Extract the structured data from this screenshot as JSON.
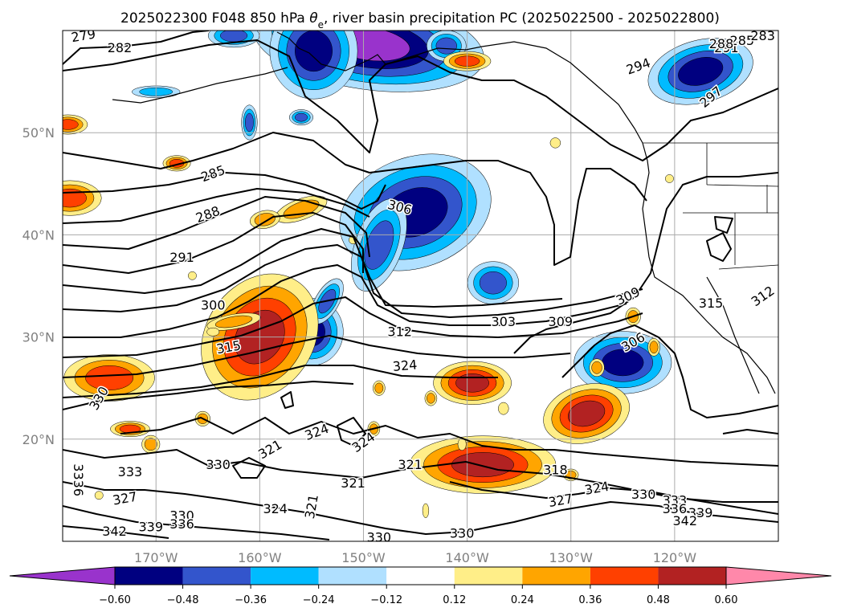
{
  "chart_data": {
    "type": "contour_map",
    "title": "2025022300 F048 850 hPa θe, river basin precipitation PC (2025022500 - 2025022800)",
    "title_parts": {
      "pre": "2025022300 F048 850 hPa ",
      "theta": "θ",
      "sub": "e",
      "post": ", river basin precipitation PC (2025022500 - 2025022800)"
    },
    "x_axis": {
      "ticks": [
        "170°W",
        "160°W",
        "150°W",
        "140°W",
        "130°W",
        "120°W"
      ],
      "values": [
        -170,
        -160,
        -150,
        -140,
        -130,
        -120
      ],
      "range": [
        -179,
        -110
      ]
    },
    "y_axis": {
      "ticks": [
        "20°N",
        "30°N",
        "40°N",
        "50°N"
      ],
      "values": [
        20,
        30,
        40,
        50
      ],
      "range": [
        10,
        60
      ]
    },
    "grid": true,
    "colorbar": {
      "orientation": "horizontal",
      "location": "bottom",
      "extend": "both",
      "boundaries": [
        -0.6,
        -0.48,
        -0.36,
        -0.24,
        -0.12,
        0.12,
        0.24,
        0.36,
        0.48,
        0.6
      ],
      "tick_labels": [
        "−0.60",
        "−0.48",
        "−0.36",
        "−0.24",
        "−0.12",
        "0.12",
        "0.24",
        "0.36",
        "0.48",
        "0.60"
      ],
      "colors": [
        "#9933cc",
        "#000080",
        "#3355cc",
        "#00bbff",
        "#b0e0ff",
        "#ffffff",
        "#ffee88",
        "#ffa500",
        "#ff4000",
        "#b22222",
        "#ff88aa"
      ]
    },
    "contour_labels": [
      {
        "text": "279",
        "lon": -177.0,
        "lat": 59.5,
        "rot": -10
      },
      {
        "text": "282",
        "lon": -173.5,
        "lat": 58.3,
        "rot": 0
      },
      {
        "text": "285",
        "lon": -164.5,
        "lat": 46.0,
        "rot": -20
      },
      {
        "text": "288",
        "lon": -165.0,
        "lat": 42.0,
        "rot": -20
      },
      {
        "text": "291",
        "lon": -167.5,
        "lat": 37.8,
        "rot": 0
      },
      {
        "text": "300",
        "lon": -164.5,
        "lat": 33.1,
        "rot": 0
      },
      {
        "text": "315",
        "lon": -163.0,
        "lat": 29.0,
        "rot": -10
      },
      {
        "text": "306",
        "lon": -146.5,
        "lat": 42.7,
        "rot": 15
      },
      {
        "text": "312",
        "lon": -146.5,
        "lat": 30.5,
        "rot": 0
      },
      {
        "text": "303",
        "lon": -136.5,
        "lat": 31.5,
        "rot": 0
      },
      {
        "text": "309",
        "lon": -131.0,
        "lat": 31.5,
        "rot": 0
      },
      {
        "text": "324",
        "lon": -146.0,
        "lat": 27.2,
        "rot": -5
      },
      {
        "text": "330",
        "lon": -175.5,
        "lat": 24.0,
        "rot": -60
      },
      {
        "text": "321",
        "lon": -159.0,
        "lat": 19.0,
        "rot": -30
      },
      {
        "text": "324",
        "lon": -154.5,
        "lat": 20.7,
        "rot": -20
      },
      {
        "text": "324",
        "lon": -150.0,
        "lat": 19.7,
        "rot": -35
      },
      {
        "text": "333",
        "lon": -172.5,
        "lat": 16.8,
        "rot": 0
      },
      {
        "text": "330",
        "lon": -164.0,
        "lat": 17.5,
        "rot": 0
      },
      {
        "text": "321",
        "lon": -145.5,
        "lat": 17.5,
        "rot": 0
      },
      {
        "text": "321",
        "lon": -151.0,
        "lat": 15.7,
        "rot": 0
      },
      {
        "text": "318",
        "lon": -131.5,
        "lat": 17.0,
        "rot": 0
      },
      {
        "text": "327",
        "lon": -173.0,
        "lat": 14.2,
        "rot": -10
      },
      {
        "text": "324",
        "lon": -158.5,
        "lat": 13.2,
        "rot": 0
      },
      {
        "text": "321",
        "lon": -155.0,
        "lat": 13.4,
        "rot": -80
      },
      {
        "text": "330",
        "lon": -167.5,
        "lat": 12.5,
        "rot": 0
      },
      {
        "text": "336",
        "lon": -167.5,
        "lat": 11.7,
        "rot": 0
      },
      {
        "text": "339",
        "lon": -170.5,
        "lat": 11.4,
        "rot": 0
      },
      {
        "text": "342",
        "lon": -174.0,
        "lat": 11.0,
        "rot": 0
      },
      {
        "text": "3336",
        "lon": -177.5,
        "lat": 16.0,
        "rot": 90
      },
      {
        "text": "330",
        "lon": -148.5,
        "lat": 10.4,
        "rot": 0
      },
      {
        "text": "330",
        "lon": -140.5,
        "lat": 10.8,
        "rot": 0
      },
      {
        "text": "327",
        "lon": -131.0,
        "lat": 14.0,
        "rot": -10
      },
      {
        "text": "324",
        "lon": -127.5,
        "lat": 15.2,
        "rot": -10
      },
      {
        "text": "330",
        "lon": -123.0,
        "lat": 14.6,
        "rot": 0
      },
      {
        "text": "333",
        "lon": -120.0,
        "lat": 14.0,
        "rot": 0
      },
      {
        "text": "336",
        "lon": -120.0,
        "lat": 13.2,
        "rot": 0
      },
      {
        "text": "339",
        "lon": -117.5,
        "lat": 12.8,
        "rot": 0
      },
      {
        "text": "342",
        "lon": -119.0,
        "lat": 12.0,
        "rot": 0
      },
      {
        "text": "294",
        "lon": -123.5,
        "lat": 56.5,
        "rot": -20
      },
      {
        "text": "297",
        "lon": -116.5,
        "lat": 53.5,
        "rot": -40
      },
      {
        "text": "291",
        "lon": -115.0,
        "lat": 58.3,
        "rot": 0
      },
      {
        "text": "285",
        "lon": -113.5,
        "lat": 59.0,
        "rot": 0
      },
      {
        "text": "288",
        "lon": -115.5,
        "lat": 58.7,
        "rot": 0
      },
      {
        "text": "283",
        "lon": -111.5,
        "lat": 59.5,
        "rot": 0
      },
      {
        "text": "309",
        "lon": -124.5,
        "lat": 34.0,
        "rot": -25
      },
      {
        "text": "315",
        "lon": -116.5,
        "lat": 33.3,
        "rot": 0
      },
      {
        "text": "312",
        "lon": -111.5,
        "lat": 34.0,
        "rot": -35
      },
      {
        "text": "306",
        "lon": -124.0,
        "lat": 29.5,
        "rot": -30
      }
    ],
    "precip_anomalies": [
      {
        "lon": -149.5,
        "lat": 58.7,
        "rx": 4.0,
        "ry": 1.6,
        "rot": 8,
        "level": -0.6
      },
      {
        "lon": -154.8,
        "lat": 58.0,
        "rx": 1.8,
        "ry": 2.0,
        "rot": 0,
        "level": -0.48
      },
      {
        "lon": -162.5,
        "lat": 59.5,
        "rx": 1.3,
        "ry": 0.6,
        "rot": 0,
        "level": -0.36
      },
      {
        "lon": -142.0,
        "lat": 58.5,
        "rx": 1.0,
        "ry": 0.8,
        "rot": 0,
        "level": -0.36
      },
      {
        "lon": -170.0,
        "lat": 54.0,
        "rx": 1.6,
        "ry": 0.4,
        "rot": 0,
        "level": -0.24
      },
      {
        "lon": -161.0,
        "lat": 51.0,
        "rx": 0.4,
        "ry": 0.9,
        "rot": 0,
        "level": -0.36
      },
      {
        "lon": -156.0,
        "lat": 51.5,
        "rx": 0.6,
        "ry": 0.4,
        "rot": 0,
        "level": -0.36
      },
      {
        "lon": -117.5,
        "lat": 56.0,
        "rx": 2.2,
        "ry": 1.3,
        "rot": -15,
        "level": -0.48
      },
      {
        "lon": -145.0,
        "lat": 42.2,
        "rx": 3.2,
        "ry": 2.3,
        "rot": -20,
        "level": -0.48
      },
      {
        "lon": -148.5,
        "lat": 39.0,
        "rx": 1.2,
        "ry": 2.5,
        "rot": 20,
        "level": -0.36
      },
      {
        "lon": -137.5,
        "lat": 35.3,
        "rx": 1.3,
        "ry": 1.1,
        "rot": 0,
        "level": -0.36
      },
      {
        "lon": -155.0,
        "lat": 30.5,
        "rx": 1.3,
        "ry": 1.4,
        "rot": 0,
        "level": -0.48
      },
      {
        "lon": -153.5,
        "lat": 33.5,
        "rx": 0.6,
        "ry": 1.3,
        "rot": 30,
        "level": -0.36
      },
      {
        "lon": -125.0,
        "lat": 27.5,
        "rx": 2.0,
        "ry": 1.3,
        "rot": 0,
        "level": -0.48
      },
      {
        "lon": -178.3,
        "lat": 43.6,
        "rx": 1.6,
        "ry": 0.9,
        "rot": 0,
        "level": 0.36
      },
      {
        "lon": -178.5,
        "lat": 50.8,
        "rx": 1.0,
        "ry": 0.5,
        "rot": 0,
        "level": 0.36
      },
      {
        "lon": -174.5,
        "lat": 26.0,
        "rx": 2.3,
        "ry": 1.2,
        "rot": 0,
        "level": 0.36
      },
      {
        "lon": -160.0,
        "lat": 30.0,
        "rx": 2.2,
        "ry": 2.8,
        "rot": 35,
        "level": 0.48
      },
      {
        "lon": -162.5,
        "lat": 31.5,
        "rx": 1.8,
        "ry": 0.5,
        "rot": -10,
        "level": 0.24
      },
      {
        "lon": -156.0,
        "lat": 42.5,
        "rx": 1.8,
        "ry": 0.7,
        "rot": -20,
        "level": 0.24
      },
      {
        "lon": -159.5,
        "lat": 41.5,
        "rx": 1.0,
        "ry": 0.6,
        "rot": -10,
        "level": 0.24
      },
      {
        "lon": -139.5,
        "lat": 25.5,
        "rx": 1.6,
        "ry": 0.9,
        "rot": 0,
        "level": 0.48
      },
      {
        "lon": -138.5,
        "lat": 17.5,
        "rx": 3.0,
        "ry": 1.2,
        "rot": 0,
        "level": 0.48
      },
      {
        "lon": -128.5,
        "lat": 22.5,
        "rx": 1.8,
        "ry": 1.2,
        "rot": -15,
        "level": 0.48
      },
      {
        "lon": -172.5,
        "lat": 21.0,
        "rx": 1.0,
        "ry": 0.4,
        "rot": 0,
        "level": 0.36
      },
      {
        "lon": -168.0,
        "lat": 47.0,
        "rx": 0.7,
        "ry": 0.4,
        "rot": 0,
        "level": 0.36
      },
      {
        "lon": -140.0,
        "lat": 57.0,
        "rx": 1.2,
        "ry": 0.5,
        "rot": 0,
        "level": 0.36
      },
      {
        "lon": -170.5,
        "lat": 19.5,
        "rx": 0.6,
        "ry": 0.6,
        "rot": 0,
        "level": 0.24
      },
      {
        "lon": -165.5,
        "lat": 22.0,
        "rx": 0.5,
        "ry": 0.5,
        "rot": 0,
        "level": 0.24
      },
      {
        "lon": -148.5,
        "lat": 25.0,
        "rx": 0.4,
        "ry": 0.5,
        "rot": 0,
        "level": 0.24
      },
      {
        "lon": -143.5,
        "lat": 24.0,
        "rx": 0.4,
        "ry": 0.5,
        "rot": 0,
        "level": 0.24
      },
      {
        "lon": -149.0,
        "lat": 21.0,
        "rx": 0.4,
        "ry": 0.5,
        "rot": 0,
        "level": 0.24
      },
      {
        "lon": -127.5,
        "lat": 27.0,
        "rx": 0.5,
        "ry": 0.6,
        "rot": 0,
        "level": 0.24
      },
      {
        "lon": -124.0,
        "lat": 32.0,
        "rx": 0.5,
        "ry": 0.6,
        "rot": 0,
        "level": 0.24
      },
      {
        "lon": -122.0,
        "lat": 29.0,
        "rx": 0.4,
        "ry": 0.6,
        "rot": 0,
        "level": 0.24
      },
      {
        "lon": -130.0,
        "lat": 16.5,
        "rx": 0.5,
        "ry": 0.4,
        "rot": 0,
        "level": 0.24
      },
      {
        "lon": -144.0,
        "lat": 13.0,
        "rx": 0.3,
        "ry": 0.7,
        "rot": 0,
        "level": 0.12
      },
      {
        "lon": -136.5,
        "lat": 23.0,
        "rx": 0.5,
        "ry": 0.6,
        "rot": 0,
        "level": 0.12
      },
      {
        "lon": -131.5,
        "lat": 49.0,
        "rx": 0.5,
        "ry": 0.5,
        "rot": 0,
        "level": 0.12
      },
      {
        "lon": -120.5,
        "lat": 45.5,
        "rx": 0.4,
        "ry": 0.4,
        "rot": 0,
        "level": 0.12
      },
      {
        "lon": -164.5,
        "lat": 30.5,
        "rx": 0.6,
        "ry": 0.4,
        "rot": 0,
        "level": 0.12
      },
      {
        "lon": -166.5,
        "lat": 36.0,
        "rx": 0.4,
        "ry": 0.4,
        "rot": 0,
        "level": 0.12
      },
      {
        "lon": -151.0,
        "lat": 39.5,
        "rx": 0.4,
        "ry": 0.4,
        "rot": 0,
        "level": 0.12
      },
      {
        "lon": -140.5,
        "lat": 19.5,
        "rx": 0.4,
        "ry": 0.6,
        "rot": 0,
        "level": 0.12
      },
      {
        "lon": -175.5,
        "lat": 14.5,
        "rx": 0.4,
        "ry": 0.4,
        "rot": 0,
        "level": 0.12
      }
    ],
    "colors": {
      "frame": "#000000",
      "grid": "#aaaaaa",
      "contour": "#000000",
      "tick_label": "#808080"
    }
  }
}
